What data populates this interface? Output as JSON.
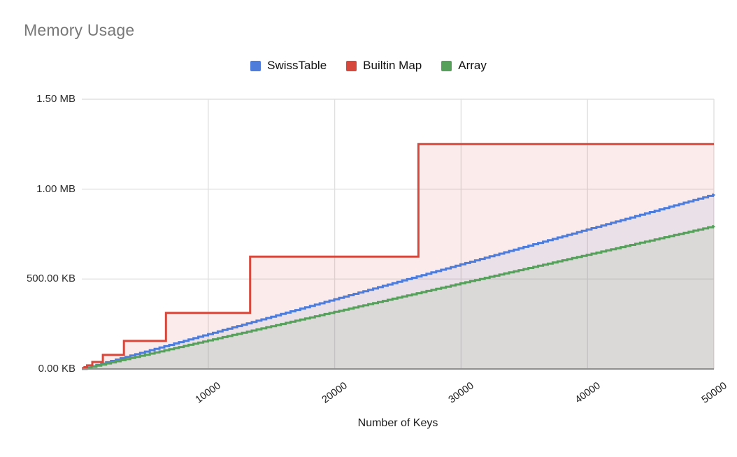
{
  "title": "Memory Usage",
  "chart_data": {
    "type": "line",
    "title": "Memory Usage",
    "xlabel": "Number of Keys",
    "ylabel": "",
    "legend_position": "top-center",
    "grid": true,
    "background": "#ffffff",
    "grid_color": "#e0e0e0",
    "baseline_color": "#8f8f8f",
    "title_color": "#777777",
    "text_color": "#1f1f1f",
    "fill_opacity": 0.1,
    "x_axis": {
      "min": 0,
      "max": 50000,
      "ticks": [
        {
          "v": 10000,
          "label": "10000"
        },
        {
          "v": 20000,
          "label": "20000"
        },
        {
          "v": 30000,
          "label": "30000"
        },
        {
          "v": 40000,
          "label": "40000"
        },
        {
          "v": 50000,
          "label": "50000"
        }
      ]
    },
    "y_axis": {
      "min_kb": 0,
      "max_kb": 1500,
      "ticks": [
        {
          "kb": 0,
          "label": "0.00 KB"
        },
        {
          "kb": 500,
          "label": "500.00 KB"
        },
        {
          "kb": 1000,
          "label": "1.00 MB"
        },
        {
          "kb": 1500,
          "label": "1.50 MB"
        }
      ]
    },
    "series": [
      {
        "name": "SwissTable",
        "color": "#4d7cdb",
        "render": "staircase",
        "step_keys": 384,
        "points": [
          {
            "x": 0,
            "kb": 0
          },
          {
            "x": 50000,
            "kb": 971
          }
        ]
      },
      {
        "name": "Builtin Map",
        "color": "#d6483b",
        "render": "step",
        "points": [
          {
            "x": 0,
            "kb": 2
          },
          {
            "x": 104,
            "kb": 5
          },
          {
            "x": 208,
            "kb": 10
          },
          {
            "x": 416,
            "kb": 20
          },
          {
            "x": 832,
            "kb": 39
          },
          {
            "x": 1664,
            "kb": 78
          },
          {
            "x": 3328,
            "kb": 156
          },
          {
            "x": 6656,
            "kb": 312
          },
          {
            "x": 13312,
            "kb": 625
          },
          {
            "x": 26624,
            "kb": 1250
          },
          {
            "x": 50000,
            "kb": 1250
          }
        ]
      },
      {
        "name": "Array",
        "color": "#56a05c",
        "render": "staircase",
        "step_keys": 384,
        "points": [
          {
            "x": 0,
            "kb": 0
          },
          {
            "x": 50000,
            "kb": 795
          }
        ]
      }
    ]
  }
}
